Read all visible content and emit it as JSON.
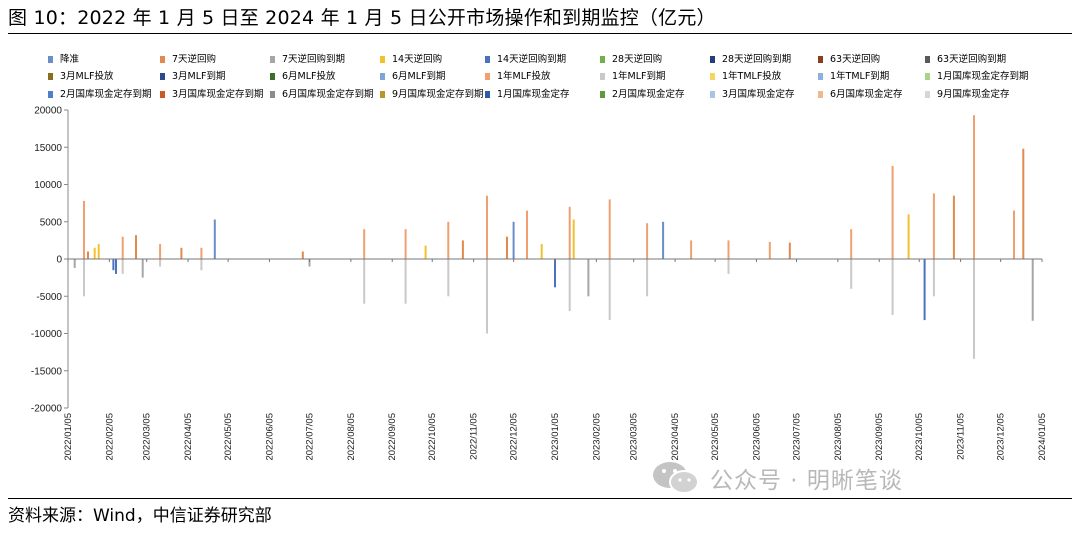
{
  "figure": {
    "title": "图 10：2022 年 1 月 5 日至 2024 年 1 月 5 日公开市场操作和到期监控（亿元）",
    "source": "资料来源：Wind，中信证券研究部",
    "watermark": "公众号 · 明晰笔谈"
  },
  "chart_data": {
    "type": "bar",
    "subtype": "stacked bar (daily net flows)",
    "ylim": [
      -20000,
      20000
    ],
    "ytick_labels": [
      "20000",
      "15000",
      "10000",
      "5000",
      "0",
      "-5000",
      "-10000",
      "-15000",
      "-20000"
    ],
    "ytick_values": [
      20000,
      15000,
      10000,
      5000,
      0,
      -5000,
      -10000,
      -15000,
      -20000
    ],
    "x_range": [
      "2022-01-05",
      "2024-01-05"
    ],
    "xtick_labels": [
      "2022/01/05",
      "2022/02/05",
      "2022/03/05",
      "2022/04/05",
      "2022/05/05",
      "2022/06/05",
      "2022/07/05",
      "2022/08/05",
      "2022/09/05",
      "2022/10/05",
      "2022/11/05",
      "2022/12/05",
      "2023/01/05",
      "2023/02/05",
      "2023/03/05",
      "2023/04/05",
      "2023/05/05",
      "2023/06/05",
      "2023/07/05",
      "2023/08/05",
      "2023/09/05",
      "2023/10/05",
      "2023/11/05",
      "2023/12/05",
      "2024/01/05"
    ],
    "legend_position": "top",
    "grid": false,
    "series": [
      {
        "name": "降准",
        "color": "#6a8ec7"
      },
      {
        "name": "7天逆回购",
        "color": "#e08a4e"
      },
      {
        "name": "7天逆回购到期",
        "color": "#a6a6a6"
      },
      {
        "name": "14天逆回购",
        "color": "#f2c12e"
      },
      {
        "name": "14天逆回购到期",
        "color": "#4a72c0"
      },
      {
        "name": "28天逆回购",
        "color": "#72b04a"
      },
      {
        "name": "28天逆回购到期",
        "color": "#233e7a"
      },
      {
        "name": "63天逆回购",
        "color": "#8b3e1e"
      },
      {
        "name": "63天逆回购到期",
        "color": "#5a5a5a"
      },
      {
        "name": "3月MLF投放",
        "color": "#8a6d1f"
      },
      {
        "name": "3月MLF到期",
        "color": "#2a4a8a"
      },
      {
        "name": "6月MLF投放",
        "color": "#3b6e28"
      },
      {
        "name": "6月MLF到期",
        "color": "#7ea4d8"
      },
      {
        "name": "1年MLF投放",
        "color": "#f0a070"
      },
      {
        "name": "1年MLF到期",
        "color": "#c9c9c9"
      },
      {
        "name": "1年TMLF投放",
        "color": "#f7d660"
      },
      {
        "name": "1年TMLF到期",
        "color": "#8cb0e0"
      },
      {
        "name": "1月国库现金定存到期",
        "color": "#a8d38a"
      },
      {
        "name": "2月国库现金定存到期",
        "color": "#4f7fc4"
      },
      {
        "name": "3月国库现金定存到期",
        "color": "#c65a28"
      },
      {
        "name": "6月国库现金定存到期",
        "color": "#8c8c8c"
      },
      {
        "name": "9月国库现金定存到期",
        "color": "#b8962e"
      },
      {
        "name": "1月国库现金定存",
        "color": "#2e5aa8"
      },
      {
        "name": "2月国库现金定存",
        "color": "#5c9a3a"
      },
      {
        "name": "3月国库现金定存",
        "color": "#a9c4e8"
      },
      {
        "name": "6月国库现金定存",
        "color": "#f3b889"
      },
      {
        "name": "9月国库现金定存",
        "color": "#d6d6d6"
      }
    ],
    "bars": [
      {
        "date": "2022-01-10",
        "series": "7天逆回购到期",
        "value": -1200
      },
      {
        "date": "2022-01-17",
        "series": "1年MLF投放",
        "value": 7800
      },
      {
        "date": "2022-01-17",
        "series": "1年MLF到期",
        "value": -5000
      },
      {
        "date": "2022-01-20",
        "series": "7天逆回购",
        "value": 1000
      },
      {
        "date": "2022-01-25",
        "series": "14天逆回购",
        "value": 1500
      },
      {
        "date": "2022-01-28",
        "series": "14天逆回购",
        "value": 2000
      },
      {
        "date": "2022-02-08",
        "series": "14天逆回购到期",
        "value": -1500
      },
      {
        "date": "2022-02-10",
        "series": "14天逆回购到期",
        "value": -2000
      },
      {
        "date": "2022-02-15",
        "series": "1年MLF投放",
        "value": 3000
      },
      {
        "date": "2022-02-15",
        "series": "1年MLF到期",
        "value": -2000
      },
      {
        "date": "2022-02-25",
        "series": "7天逆回购",
        "value": 3200
      },
      {
        "date": "2022-03-02",
        "series": "7天逆回购到期",
        "value": -2500
      },
      {
        "date": "2022-03-15",
        "series": "1年MLF投放",
        "value": 2000
      },
      {
        "date": "2022-03-15",
        "series": "1年MLF到期",
        "value": -1000
      },
      {
        "date": "2022-03-31",
        "series": "7天逆回购",
        "value": 1500
      },
      {
        "date": "2022-04-15",
        "series": "1年MLF投放",
        "value": 1500
      },
      {
        "date": "2022-04-15",
        "series": "1年MLF到期",
        "value": -1500
      },
      {
        "date": "2022-04-25",
        "series": "降准",
        "value": 5300
      },
      {
        "date": "2022-06-30",
        "series": "7天逆回购",
        "value": 1000
      },
      {
        "date": "2022-07-05",
        "series": "7天逆回购到期",
        "value": -1000
      },
      {
        "date": "2022-08-15",
        "series": "1年MLF投放",
        "value": 4000
      },
      {
        "date": "2022-08-15",
        "series": "1年MLF到期",
        "value": -6000
      },
      {
        "date": "2022-09-15",
        "series": "1年MLF投放",
        "value": 4000
      },
      {
        "date": "2022-09-15",
        "series": "1年MLF到期",
        "value": -6000
      },
      {
        "date": "2022-09-30",
        "series": "14天逆回购",
        "value": 1800
      },
      {
        "date": "2022-10-17",
        "series": "1年MLF投放",
        "value": 5000
      },
      {
        "date": "2022-10-17",
        "series": "1年MLF到期",
        "value": -5000
      },
      {
        "date": "2022-10-28",
        "series": "7天逆回购",
        "value": 2500
      },
      {
        "date": "2022-11-15",
        "series": "1年MLF投放",
        "value": 8500
      },
      {
        "date": "2022-11-15",
        "series": "1年MLF到期",
        "value": -10000
      },
      {
        "date": "2022-11-30",
        "series": "7天逆回购",
        "value": 3000
      },
      {
        "date": "2022-12-05",
        "series": "降准",
        "value": 5000
      },
      {
        "date": "2022-12-15",
        "series": "1年MLF投放",
        "value": 6500
      },
      {
        "date": "2022-12-26",
        "series": "14天逆回购",
        "value": 2000
      },
      {
        "date": "2023-01-05",
        "series": "14天逆回购到期",
        "value": -3800
      },
      {
        "date": "2023-01-16",
        "series": "1年MLF投放",
        "value": 7000
      },
      {
        "date": "2023-01-16",
        "series": "1年MLF到期",
        "value": -7000
      },
      {
        "date": "2023-01-19",
        "series": "14天逆回购",
        "value": 5300
      },
      {
        "date": "2023-01-30",
        "series": "7天逆回购到期",
        "value": -5000
      },
      {
        "date": "2023-02-15",
        "series": "1年MLF投放",
        "value": 8000
      },
      {
        "date": "2023-02-15",
        "series": "1年MLF到期",
        "value": -8200
      },
      {
        "date": "2023-03-15",
        "series": "1年MLF投放",
        "value": 4800
      },
      {
        "date": "2023-03-15",
        "series": "1年MLF到期",
        "value": -5000
      },
      {
        "date": "2023-03-27",
        "series": "降准",
        "value": 5000
      },
      {
        "date": "2023-04-17",
        "series": "1年MLF投放",
        "value": 2500
      },
      {
        "date": "2023-05-15",
        "series": "1年MLF投放",
        "value": 2500
      },
      {
        "date": "2023-05-15",
        "series": "1年MLF到期",
        "value": -2000
      },
      {
        "date": "2023-06-15",
        "series": "1年MLF投放",
        "value": 2300
      },
      {
        "date": "2023-06-30",
        "series": "7天逆回购",
        "value": 2200
      },
      {
        "date": "2023-08-15",
        "series": "1年MLF投放",
        "value": 4000
      },
      {
        "date": "2023-08-15",
        "series": "1年MLF到期",
        "value": -4000
      },
      {
        "date": "2023-09-15",
        "series": "1年MLF投放",
        "value": 12500
      },
      {
        "date": "2023-09-15",
        "series": "1年MLF到期",
        "value": -7500
      },
      {
        "date": "2023-09-27",
        "series": "14天逆回购",
        "value": 6000
      },
      {
        "date": "2023-10-09",
        "series": "14天逆回购到期",
        "value": -8200
      },
      {
        "date": "2023-10-16",
        "series": "1年MLF投放",
        "value": 8800
      },
      {
        "date": "2023-10-16",
        "series": "1年MLF到期",
        "value": -5000
      },
      {
        "date": "2023-10-31",
        "series": "7天逆回购",
        "value": 8500
      },
      {
        "date": "2023-11-15",
        "series": "1年MLF投放",
        "value": 19300
      },
      {
        "date": "2023-11-15",
        "series": "1年MLF到期",
        "value": -13400
      },
      {
        "date": "2023-12-15",
        "series": "1年MLF投放",
        "value": 6500
      },
      {
        "date": "2023-12-22",
        "series": "7天逆回购",
        "value": 14800
      },
      {
        "date": "2023-12-29",
        "series": "7天逆回购到期",
        "value": -8300
      }
    ]
  }
}
